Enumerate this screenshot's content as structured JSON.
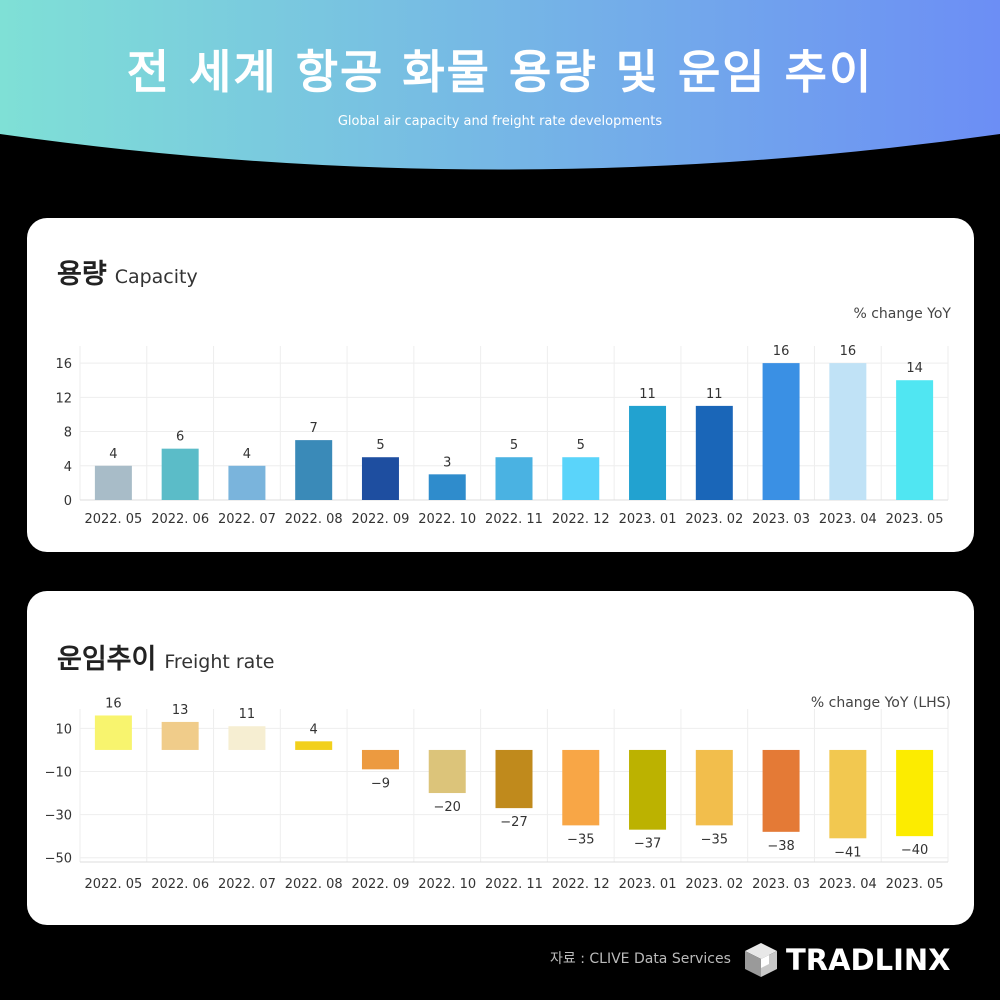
{
  "header": {
    "title": "전 세계 항공 화물 용량 및 운임 추이",
    "subtitle": "Global air capacity and freight rate developments"
  },
  "capacity": {
    "title_ko": "용량",
    "title_en": "Capacity",
    "unit": "% change YoY"
  },
  "freight": {
    "title_ko": "운임추이",
    "title_en": "Freight rate",
    "unit": "% change YoY (LHS)"
  },
  "footer": {
    "source": "자료 : CLIVE Data Services",
    "logo_text": "TRADLINX",
    "logo_icon": "tradlinx-cube-icon"
  },
  "colors": {
    "header_gradient": [
      "#7fe0d6",
      "#6c8ef5"
    ]
  },
  "chart_data": [
    {
      "type": "bar",
      "categories": [
        "2022. 05",
        "2022. 06",
        "2022. 07",
        "2022. 08",
        "2022. 09",
        "2022. 10",
        "2022. 11",
        "2022. 12",
        "2023. 01",
        "2023. 02",
        "2023. 03",
        "2023. 04",
        "2023. 05"
      ],
      "values": [
        4,
        6,
        4,
        7,
        5,
        3,
        5,
        5,
        11,
        11,
        16,
        16,
        14
      ],
      "colors": [
        "#a8bcc8",
        "#5bbcc8",
        "#7ab4dc",
        "#3a8ab8",
        "#1e4ea0",
        "#2f8ccc",
        "#4ab2e2",
        "#5ad4fa",
        "#22a2d0",
        "#1a66b8",
        "#3a90e4",
        "#c0e2f6",
        "#50e6f2"
      ],
      "yticks": [
        0,
        4,
        8,
        12,
        16
      ],
      "ylim": [
        0,
        18
      ],
      "grid": true
    },
    {
      "type": "bar",
      "categories": [
        "2022. 05",
        "2022. 06",
        "2022. 07",
        "2022. 08",
        "2022. 09",
        "2022. 10",
        "2022. 11",
        "2022. 12",
        "2023. 01",
        "2023. 02",
        "2023. 03",
        "2023. 04",
        "2023. 05"
      ],
      "values": [
        16,
        13,
        11,
        4,
        -9,
        -20,
        -27,
        -35,
        -37,
        -35,
        -38,
        -41,
        -40
      ],
      "colors": [
        "#f8f46e",
        "#f0cc8a",
        "#f6eed2",
        "#f2d01c",
        "#ec9a40",
        "#dcc47a",
        "#c08a1c",
        "#f8a646",
        "#bcb200",
        "#f2be4c",
        "#e47a36",
        "#f2c850",
        "#fcec00"
      ],
      "yticks": [
        10,
        -10,
        -30,
        -50
      ],
      "ylim": [
        -52,
        19
      ],
      "grid": true
    }
  ]
}
